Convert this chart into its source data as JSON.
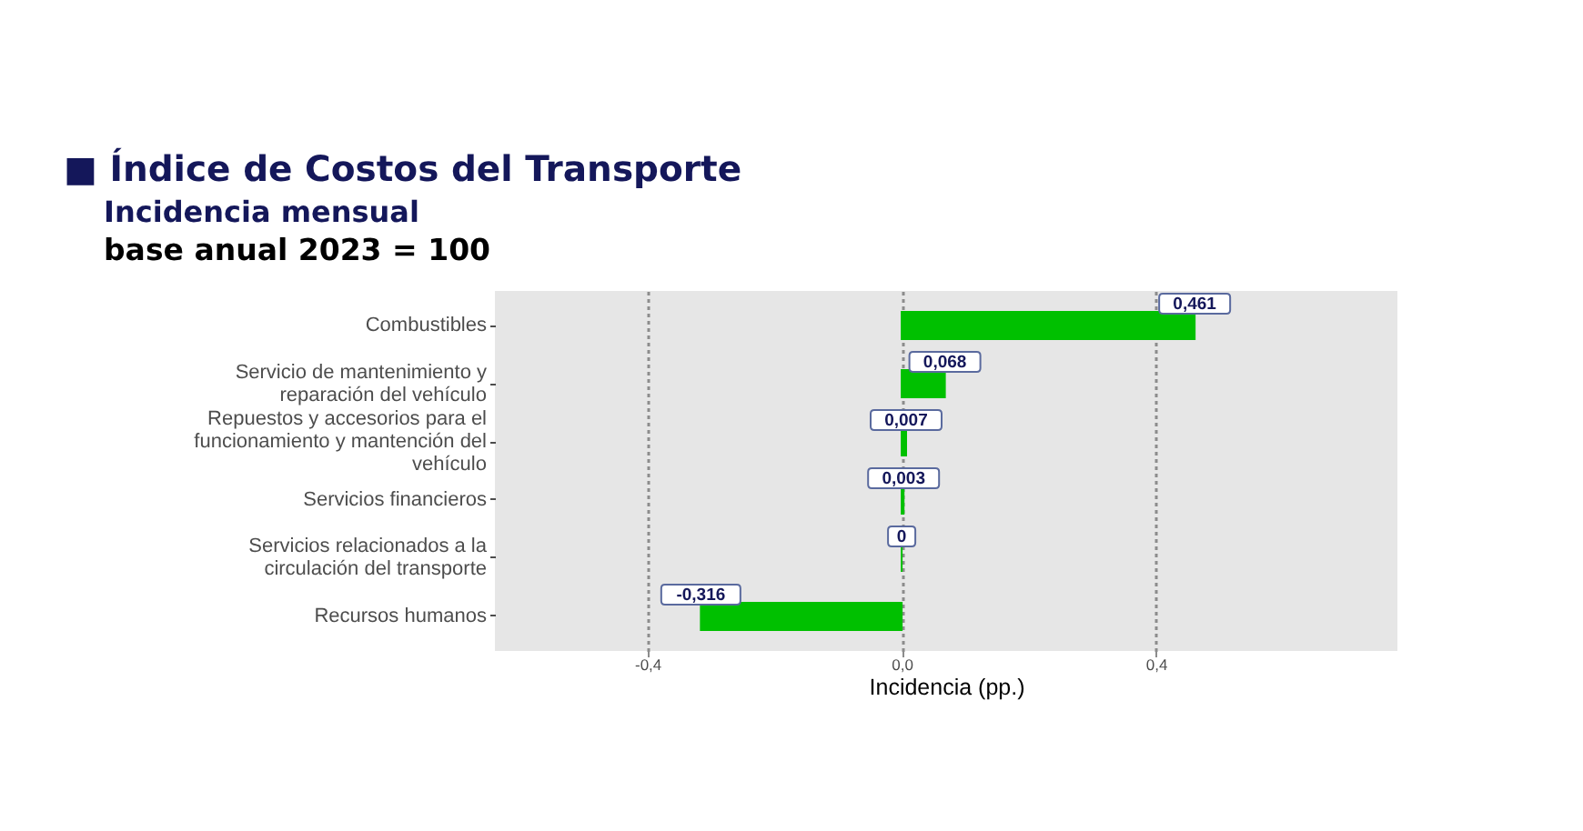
{
  "chart_data": {
    "type": "bar",
    "orientation": "horizontal",
    "title": "■ Índice de Costos del Transporte",
    "subtitle": "Incidencia mensual",
    "annotations": [
      "base anual 2023 = 100"
    ],
    "categories": [
      "Combustibles",
      "Servicio de mantenimiento y\nreparación del vehículo",
      "Repuestos y accesorios para el\nfuncionamiento y mantención del\nvehículo",
      "Servicios financieros",
      "Servicios relacionados a la\ncirculación del transporte",
      "Recursos humanos"
    ],
    "values": [
      0.461,
      0.068,
      0.007,
      0.003,
      0,
      -0.316
    ],
    "value_labels": [
      "0,461",
      "0,068",
      "0,007",
      "0,003",
      "0",
      "-0,316"
    ],
    "color": "#00c000",
    "xlabel": "Incidencia (pp.)",
    "xlim": [
      -0.64,
      0.78
    ],
    "xticks": [
      {
        "value": -0.4,
        "label": "-0,4"
      },
      {
        "value": 0,
        "label": "0,0"
      },
      {
        "value": 0.4,
        "label": "0,4"
      }
    ],
    "grid": "x"
  }
}
